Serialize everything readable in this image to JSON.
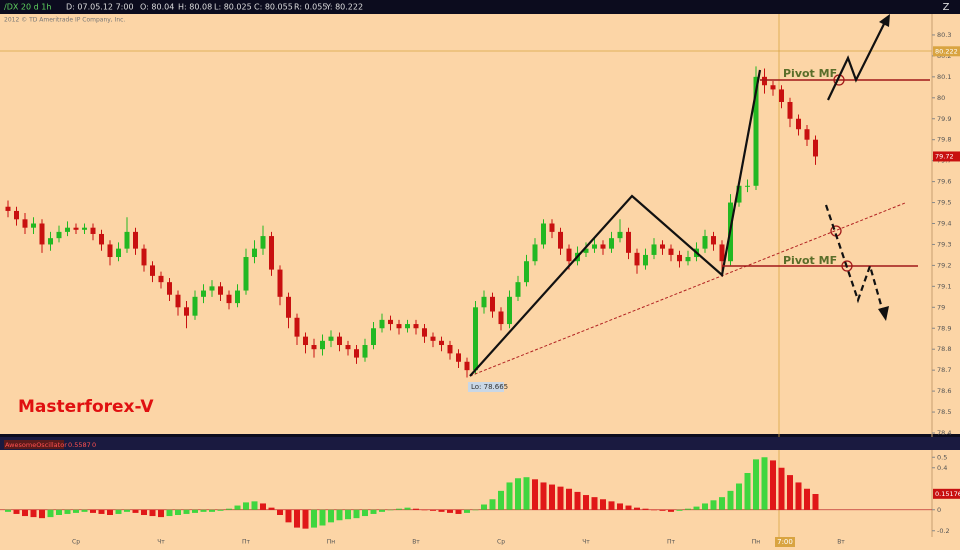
{
  "header": {
    "symbol": "/DX 20 d 1h",
    "date": "D: 07.05.12 7:00",
    "open": "O: 80.04",
    "high": "H: 80.08",
    "low": "L: 80.025",
    "close": "C: 80.055",
    "range": "R: 0.055",
    "last": "Y: 80.222",
    "copyright": "2012 © TD Ameritrade IP Company, Inc."
  },
  "annotations": {
    "brand": "Masterforex-V",
    "pivot_upper": "Pivot MF",
    "pivot_lower": "Pivot MF",
    "low_label": "Lo: 78.665",
    "crosshair_time": "7:00"
  },
  "chart_data": [
    {
      "type": "candlestick",
      "up_color": "#22b822",
      "down_color": "#c81010",
      "ylim": [
        78.4,
        80.4
      ],
      "yticks": [
        78.4,
        78.5,
        78.6,
        78.7,
        78.8,
        78.9,
        79,
        79.1,
        79.2,
        79.3,
        79.4,
        79.5,
        79.6,
        79.7,
        79.8,
        79.9,
        80,
        80.1,
        80.2,
        80.3
      ],
      "price_markers": [
        {
          "value": 80.222,
          "color": "#d9a441"
        },
        {
          "value": 79.72,
          "color": "#c81010"
        }
      ],
      "categories": [
        null,
        null,
        null,
        null,
        null,
        null,
        null,
        null,
        "Ср",
        null,
        null,
        null,
        null,
        null,
        null,
        null,
        null,
        null,
        "Чт",
        null,
        null,
        null,
        null,
        null,
        null,
        null,
        null,
        null,
        "Пт",
        null,
        null,
        null,
        null,
        null,
        null,
        null,
        null,
        null,
        "Пн",
        null,
        null,
        null,
        null,
        null,
        null,
        null,
        null,
        null,
        "Вт",
        null,
        null,
        null,
        null,
        null,
        null,
        null,
        null,
        null,
        "Ср",
        null,
        null,
        null,
        null,
        null,
        null,
        null,
        null,
        null,
        "Чт",
        null,
        null,
        null,
        null,
        null,
        null,
        null,
        null,
        null,
        "Пт",
        null,
        null,
        null,
        null,
        null,
        null,
        null,
        null,
        null,
        "Пн",
        null,
        null,
        null,
        null,
        null,
        null,
        null,
        null,
        null,
        "Вт",
        null
      ],
      "open": [
        79.48,
        79.46,
        79.42,
        79.38,
        79.4,
        79.3,
        79.33,
        79.36,
        79.38,
        79.37,
        79.38,
        79.35,
        79.3,
        79.24,
        79.28,
        79.36,
        79.28,
        79.2,
        79.15,
        79.12,
        79.06,
        79.0,
        78.96,
        79.05,
        79.08,
        79.1,
        79.06,
        79.02,
        79.08,
        79.24,
        79.28,
        79.34,
        79.18,
        79.05,
        78.95,
        78.86,
        78.82,
        78.8,
        78.84,
        78.86,
        78.82,
        78.8,
        78.76,
        78.82,
        78.9,
        78.94,
        78.92,
        78.9,
        78.92,
        78.9,
        78.86,
        78.84,
        78.82,
        78.78,
        78.74,
        78.7,
        79.0,
        79.05,
        78.98,
        78.92,
        79.05,
        79.12,
        79.22,
        79.3,
        79.4,
        79.36,
        79.28,
        79.22,
        79.26,
        79.28,
        79.3,
        79.28,
        79.33,
        79.36,
        79.26,
        79.2,
        79.25,
        79.3,
        79.28,
        79.25,
        79.22,
        79.24,
        79.28,
        79.34,
        79.3,
        79.22,
        79.5,
        79.58,
        79.58,
        80.1,
        80.06,
        80.04,
        79.98,
        79.9,
        79.85,
        79.8,
        null,
        null,
        null,
        null
      ],
      "high": [
        79.51,
        79.48,
        79.45,
        79.43,
        79.42,
        79.36,
        79.39,
        79.41,
        79.4,
        79.4,
        79.4,
        79.37,
        79.32,
        79.31,
        79.43,
        79.38,
        79.3,
        79.22,
        79.17,
        79.14,
        79.08,
        79.03,
        79.08,
        79.11,
        79.13,
        79.12,
        79.08,
        79.11,
        79.28,
        79.32,
        79.39,
        79.36,
        79.2,
        79.07,
        78.97,
        78.88,
        78.85,
        78.87,
        78.89,
        78.88,
        78.84,
        78.82,
        78.85,
        78.93,
        78.97,
        78.96,
        78.94,
        78.94,
        78.94,
        78.92,
        78.88,
        78.86,
        78.84,
        78.8,
        78.76,
        79.03,
        79.08,
        79.07,
        79.0,
        79.08,
        79.15,
        79.25,
        79.33,
        79.42,
        79.42,
        79.38,
        79.3,
        79.29,
        79.31,
        79.33,
        79.32,
        79.36,
        79.42,
        79.38,
        79.28,
        79.28,
        79.33,
        79.32,
        79.3,
        79.27,
        79.27,
        79.31,
        79.37,
        79.36,
        79.32,
        79.54,
        79.61,
        79.61,
        80.15,
        80.14,
        80.08,
        80.06,
        80.0,
        79.92,
        79.87,
        79.82,
        null,
        null,
        null,
        null
      ],
      "low": [
        79.43,
        79.39,
        79.35,
        79.35,
        79.26,
        79.27,
        79.31,
        79.34,
        79.35,
        79.35,
        79.32,
        79.27,
        79.2,
        79.22,
        79.26,
        79.25,
        79.17,
        79.12,
        79.09,
        79.03,
        78.96,
        78.9,
        78.94,
        79.02,
        79.05,
        79.03,
        78.99,
        79.0,
        79.06,
        79.21,
        79.25,
        79.15,
        79.01,
        78.9,
        78.82,
        78.78,
        78.76,
        78.77,
        78.81,
        78.79,
        78.77,
        78.73,
        78.74,
        78.8,
        78.88,
        78.89,
        78.87,
        78.88,
        78.87,
        78.83,
        78.81,
        78.79,
        78.75,
        78.71,
        78.665,
        78.68,
        78.97,
        78.95,
        78.89,
        78.9,
        79.03,
        79.1,
        79.2,
        79.28,
        79.33,
        79.25,
        79.18,
        79.2,
        79.24,
        79.26,
        79.25,
        79.26,
        79.31,
        79.23,
        79.16,
        79.18,
        79.23,
        79.25,
        79.22,
        79.19,
        79.2,
        79.22,
        79.26,
        79.27,
        79.15,
        79.2,
        79.48,
        79.55,
        79.56,
        80.02,
        80.01,
        79.95,
        79.86,
        79.82,
        79.77,
        79.68,
        null,
        null,
        null,
        null
      ],
      "close": [
        79.46,
        79.42,
        79.38,
        79.4,
        79.3,
        79.33,
        79.36,
        79.38,
        79.37,
        79.38,
        79.35,
        79.3,
        79.24,
        79.28,
        79.36,
        79.28,
        79.2,
        79.15,
        79.12,
        79.06,
        79.0,
        78.96,
        79.05,
        79.08,
        79.1,
        79.06,
        79.02,
        79.08,
        79.24,
        79.28,
        79.34,
        79.18,
        79.05,
        78.95,
        78.86,
        78.82,
        78.8,
        78.84,
        78.86,
        78.82,
        78.8,
        78.76,
        78.82,
        78.9,
        78.94,
        78.92,
        78.9,
        78.92,
        78.9,
        78.86,
        78.84,
        78.82,
        78.78,
        78.74,
        78.7,
        79.0,
        79.05,
        78.98,
        78.92,
        79.05,
        79.12,
        79.22,
        79.3,
        79.4,
        79.36,
        79.28,
        79.22,
        79.26,
        79.28,
        79.3,
        79.28,
        79.33,
        79.36,
        79.26,
        79.2,
        79.25,
        79.3,
        79.28,
        79.25,
        79.22,
        79.24,
        79.28,
        79.34,
        79.3,
        79.22,
        79.5,
        79.58,
        79.58,
        80.1,
        80.06,
        80.04,
        79.98,
        79.9,
        79.85,
        79.8,
        79.72,
        null,
        null,
        null,
        null
      ]
    },
    {
      "type": "bar",
      "title": "AwesomeOscillator",
      "params": "0.5587",
      "param2": "0",
      "up_color": "#3fd63f",
      "down_color": "#e01818",
      "ylim": [
        -0.25,
        0.55
      ],
      "yticks": [
        -0.2,
        0,
        0.4,
        0.5
      ],
      "price_markers": [
        {
          "value": 0.15176,
          "color": "#c81010"
        }
      ],
      "values": [
        -0.02,
        -0.04,
        -0.06,
        -0.07,
        -0.08,
        -0.07,
        -0.05,
        -0.04,
        -0.03,
        -0.02,
        -0.03,
        -0.04,
        -0.05,
        -0.04,
        -0.02,
        -0.03,
        -0.05,
        -0.06,
        -0.07,
        -0.06,
        -0.05,
        -0.04,
        -0.03,
        -0.02,
        -0.02,
        -0.01,
        0.01,
        0.04,
        0.07,
        0.08,
        0.06,
        0.02,
        -0.05,
        -0.12,
        -0.17,
        -0.18,
        -0.17,
        -0.15,
        -0.12,
        -0.1,
        -0.09,
        -0.08,
        -0.06,
        -0.04,
        -0.02,
        0.0,
        0.01,
        0.02,
        0.01,
        0.0,
        -0.01,
        -0.02,
        -0.03,
        -0.04,
        -0.03,
        0.0,
        0.05,
        0.1,
        0.18,
        0.26,
        0.3,
        0.31,
        0.29,
        0.26,
        0.24,
        0.22,
        0.2,
        0.17,
        0.14,
        0.12,
        0.1,
        0.08,
        0.06,
        0.04,
        0.02,
        0.01,
        0.0,
        -0.01,
        -0.02,
        -0.01,
        0.01,
        0.03,
        0.06,
        0.09,
        0.12,
        0.18,
        0.25,
        0.35,
        0.48,
        0.5,
        0.47,
        0.4,
        0.33,
        0.26,
        0.2,
        0.15,
        null,
        null,
        null,
        null
      ]
    }
  ]
}
